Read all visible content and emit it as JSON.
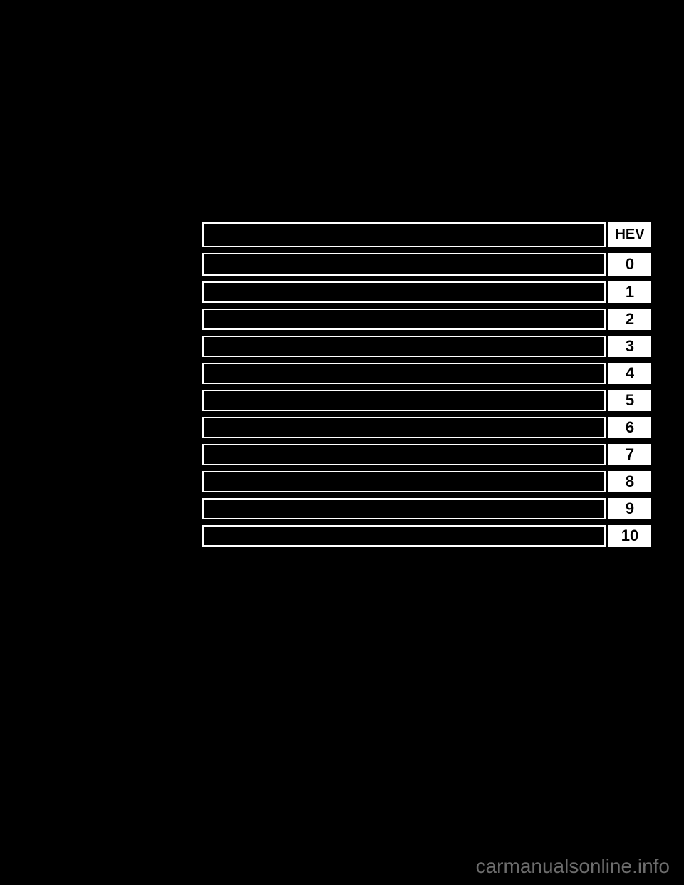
{
  "toc": {
    "rows": [
      {
        "label": "",
        "number": "HEV",
        "rowClass": "toc-row-hev"
      },
      {
        "label": "",
        "number": "0",
        "rowClass": "toc-row-first"
      },
      {
        "label": "",
        "number": "1",
        "rowClass": "toc-row-normal"
      },
      {
        "label": "",
        "number": "2",
        "rowClass": "toc-row-normal"
      },
      {
        "label": "",
        "number": "3",
        "rowClass": "toc-row-normal"
      },
      {
        "label": "",
        "number": "4",
        "rowClass": "toc-row-normal"
      },
      {
        "label": "",
        "number": "5",
        "rowClass": "toc-row-normal"
      },
      {
        "label": "",
        "number": "6",
        "rowClass": "toc-row-normal"
      },
      {
        "label": "",
        "number": "7",
        "rowClass": "toc-row-normal"
      },
      {
        "label": "",
        "number": "8",
        "rowClass": "toc-row-normal"
      },
      {
        "label": "",
        "number": "9",
        "rowClass": "toc-row-normal"
      },
      {
        "label": "",
        "number": "10",
        "rowClass": "toc-row-normal"
      }
    ]
  },
  "watermark": "carmanualsonline.info",
  "colors": {
    "background": "#000000",
    "border": "#ffffff",
    "numberBg": "#ffffff",
    "numberText": "#000000",
    "watermark": "#888888"
  }
}
